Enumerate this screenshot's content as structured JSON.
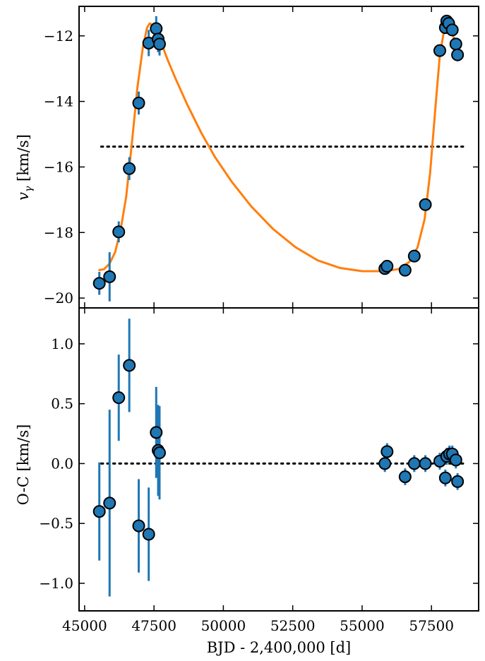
{
  "chart_data": [
    {
      "type": "scatter",
      "ylabel_main": "v",
      "ylabel_sub": "γ",
      "ylabel_unit": " [km/s]",
      "xlim": [
        44800,
        59200
      ],
      "ylim": [
        -20.3,
        -11.1
      ],
      "yticks": [
        -20,
        -18,
        -16,
        -14,
        -12
      ],
      "ytick_labels": [
        "−20",
        "−18",
        "−16",
        "−14",
        "−12"
      ],
      "reference_line": -15.38,
      "points": [
        {
          "x": 45530,
          "y": -19.55,
          "err": 0.35
        },
        {
          "x": 45900,
          "y": -19.35,
          "err": 0.75
        },
        {
          "x": 46230,
          "y": -17.98,
          "err": 0.32
        },
        {
          "x": 46610,
          "y": -16.05,
          "err": 0.35
        },
        {
          "x": 46950,
          "y": -14.05,
          "err": 0.35
        },
        {
          "x": 47310,
          "y": -12.22,
          "err": 0.4
        },
        {
          "x": 47580,
          "y": -11.78,
          "err": 0.38
        },
        {
          "x": 47650,
          "y": -12.1,
          "err": 0.4
        },
        {
          "x": 47700,
          "y": -12.25,
          "err": 0.35
        },
        {
          "x": 55820,
          "y": -19.1,
          "err": 0.1
        },
        {
          "x": 55900,
          "y": -19.03,
          "err": 0.1
        },
        {
          "x": 56550,
          "y": -19.15,
          "err": 0.1
        },
        {
          "x": 56880,
          "y": -18.72,
          "err": 0.1
        },
        {
          "x": 57280,
          "y": -17.15,
          "err": 0.1
        },
        {
          "x": 57800,
          "y": -12.45,
          "err": 0.1
        },
        {
          "x": 58000,
          "y": -11.75,
          "err": 0.1
        },
        {
          "x": 58050,
          "y": -11.55,
          "err": 0.1
        },
        {
          "x": 58120,
          "y": -11.62,
          "err": 0.1
        },
        {
          "x": 58250,
          "y": -11.82,
          "err": 0.1
        },
        {
          "x": 58380,
          "y": -12.25,
          "err": 0.1
        },
        {
          "x": 58440,
          "y": -12.58,
          "err": 0.1
        }
      ],
      "model": [
        [
          45500,
          -19.15
        ],
        [
          45700,
          -19.12
        ],
        [
          45900,
          -18.95
        ],
        [
          46100,
          -18.6
        ],
        [
          46300,
          -17.9
        ],
        [
          46500,
          -16.9
        ],
        [
          46700,
          -15.3
        ],
        [
          46900,
          -13.6
        ],
        [
          47100,
          -12.35
        ],
        [
          47250,
          -11.75
        ],
        [
          47350,
          -11.62
        ],
        [
          47450,
          -11.68
        ],
        [
          47600,
          -11.9
        ],
        [
          47800,
          -12.3
        ],
        [
          48000,
          -12.75
        ],
        [
          48300,
          -13.35
        ],
        [
          48700,
          -14.1
        ],
        [
          49200,
          -14.95
        ],
        [
          49700,
          -15.7
        ],
        [
          50300,
          -16.45
        ],
        [
          51000,
          -17.2
        ],
        [
          51800,
          -17.9
        ],
        [
          52600,
          -18.45
        ],
        [
          53400,
          -18.85
        ],
        [
          54200,
          -19.08
        ],
        [
          55000,
          -19.18
        ],
        [
          55800,
          -19.18
        ],
        [
          56300,
          -19.12
        ],
        [
          56700,
          -18.9
        ],
        [
          57000,
          -18.45
        ],
        [
          57250,
          -17.6
        ],
        [
          57450,
          -16.2
        ],
        [
          57650,
          -14.1
        ],
        [
          57800,
          -12.6
        ],
        [
          57950,
          -11.85
        ],
        [
          58050,
          -11.65
        ],
        [
          58150,
          -11.75
        ],
        [
          58300,
          -12.05
        ],
        [
          58450,
          -12.5
        ]
      ],
      "colors": {
        "points": "#1f77b4",
        "model": "#ff7f0e",
        "reference": "#000000"
      }
    },
    {
      "type": "scatter",
      "ylabel": "O-C [km/s]",
      "xlabel": "BJD - 2,400,000 [d]",
      "xlim": [
        44800,
        59200
      ],
      "ylim": [
        -1.23,
        1.3
      ],
      "xticks": [
        45000,
        47500,
        50000,
        52500,
        55000,
        57500
      ],
      "xtick_labels": [
        "45000",
        "47500",
        "50000",
        "52500",
        "55000",
        "57500"
      ],
      "yticks": [
        -1.0,
        -0.5,
        0.0,
        0.5,
        1.0
      ],
      "ytick_labels": [
        "−1.0",
        "−0.5",
        "0.0",
        "0.5",
        "1.0"
      ],
      "reference_line": 0.0,
      "points": [
        {
          "x": 45530,
          "y": -0.4,
          "err": 0.41
        },
        {
          "x": 45900,
          "y": -0.33,
          "err": 0.78
        },
        {
          "x": 46230,
          "y": 0.55,
          "err": 0.36
        },
        {
          "x": 46610,
          "y": 0.82,
          "err": 0.39
        },
        {
          "x": 46950,
          "y": -0.52,
          "err": 0.39
        },
        {
          "x": 47310,
          "y": -0.59,
          "err": 0.39
        },
        {
          "x": 47580,
          "y": 0.26,
          "err": 0.38
        },
        {
          "x": 47650,
          "y": 0.11,
          "err": 0.38
        },
        {
          "x": 47700,
          "y": 0.09,
          "err": 0.39
        },
        {
          "x": 55820,
          "y": 0.0,
          "err": 0.07
        },
        {
          "x": 55900,
          "y": 0.1,
          "err": 0.07
        },
        {
          "x": 56550,
          "y": -0.11,
          "err": 0.07
        },
        {
          "x": 56880,
          "y": 0.0,
          "err": 0.07
        },
        {
          "x": 57280,
          "y": 0.0,
          "err": 0.07
        },
        {
          "x": 57800,
          "y": 0.02,
          "err": 0.07
        },
        {
          "x": 58000,
          "y": -0.12,
          "err": 0.07
        },
        {
          "x": 58050,
          "y": 0.06,
          "err": 0.07
        },
        {
          "x": 58150,
          "y": 0.08,
          "err": 0.07
        },
        {
          "x": 58250,
          "y": 0.08,
          "err": 0.07
        },
        {
          "x": 58380,
          "y": 0.03,
          "err": 0.07
        },
        {
          "x": 58440,
          "y": -0.15,
          "err": 0.07
        }
      ],
      "colors": {
        "points": "#1f77b4",
        "reference": "#000000"
      }
    }
  ]
}
